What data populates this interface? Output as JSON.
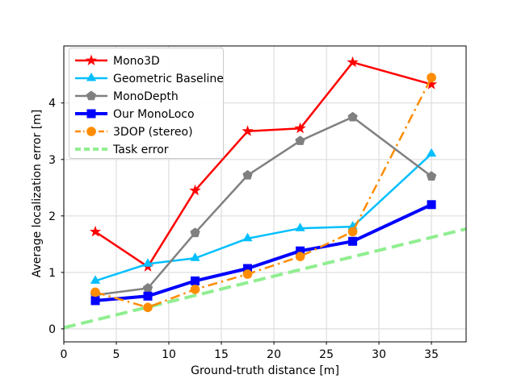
{
  "chart_data": {
    "type": "line",
    "title": "",
    "xlabel": "Ground-truth distance [m]",
    "ylabel": "Average localization error [m]",
    "xlim": [
      0,
      38.3
    ],
    "ylim": [
      -0.23,
      5.01
    ],
    "xticks": [
      0,
      5,
      10,
      15,
      20,
      25,
      30,
      35
    ],
    "yticks": [
      0,
      1,
      2,
      3,
      4
    ],
    "grid": true,
    "grid_color": "#dedede",
    "axis_color": "#000000",
    "legend_position": "upper-left",
    "legend_border_color": "#cccccc",
    "categories": [
      3,
      8,
      12.5,
      17.5,
      22.5,
      27.5,
      35
    ],
    "series": [
      {
        "name": "Mono3D",
        "color": "#ff0000",
        "marker": "star",
        "linestyle": "solid",
        "linewidth": 2.5,
        "zorder": 2,
        "values": [
          1.72,
          1.1,
          2.45,
          3.5,
          3.55,
          4.72,
          4.33
        ]
      },
      {
        "name": "Geometric Baseline",
        "color": "#00bfff",
        "marker": "triangle",
        "linestyle": "solid",
        "linewidth": 2.5,
        "zorder": 3,
        "values": [
          0.85,
          1.15,
          1.25,
          1.6,
          1.78,
          1.81,
          3.1
        ]
      },
      {
        "name": "MonoDepth",
        "color": "#808080",
        "marker": "pentagon",
        "linestyle": "solid",
        "linewidth": 2.5,
        "zorder": 4,
        "values": [
          0.6,
          0.72,
          1.7,
          2.72,
          3.33,
          3.75,
          2.7
        ]
      },
      {
        "name": "Our MonoLoco",
        "color": "#0000ff",
        "marker": "square",
        "linestyle": "solid",
        "linewidth": 4,
        "zorder": 5,
        "values": [
          0.5,
          0.58,
          0.85,
          1.07,
          1.38,
          1.55,
          2.2
        ]
      },
      {
        "name": "3DOP (stereo)",
        "color": "#ff8c00",
        "marker": "circle",
        "linestyle": "dashdot",
        "linewidth": 2.5,
        "zorder": 6,
        "values": [
          0.65,
          0.38,
          0.7,
          0.97,
          1.28,
          1.72,
          4.45
        ]
      },
      {
        "name": "Task error",
        "color": "#90ee90",
        "marker": "none",
        "linestyle": "dashed",
        "linewidth": 4,
        "zorder": 1,
        "x": [
          0,
          38.3
        ],
        "values": [
          0.02,
          1.77
        ]
      }
    ]
  }
}
